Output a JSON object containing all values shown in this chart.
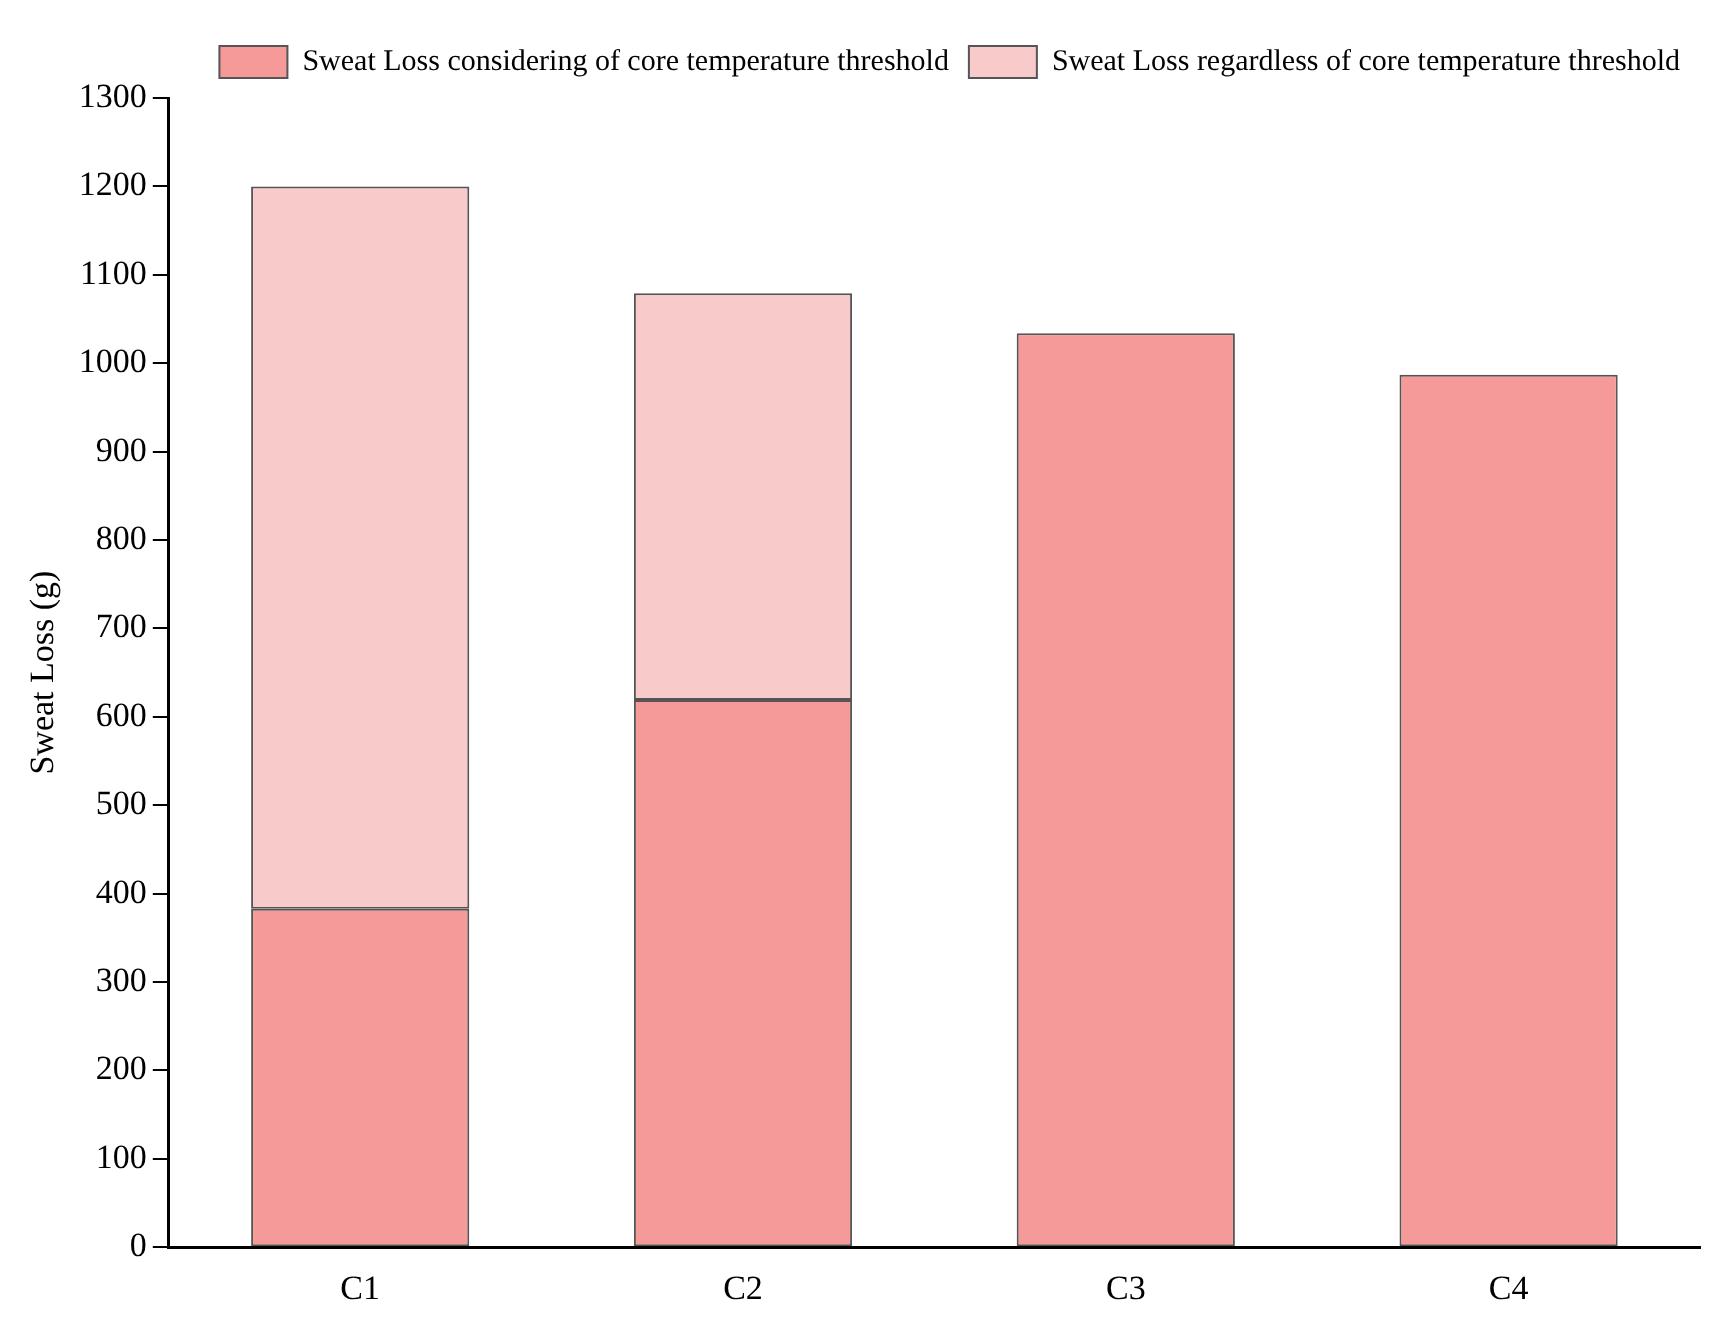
{
  "chart_data": {
    "type": "bar",
    "ylabel": "Sweat Loss (g)",
    "categories": [
      "C1",
      "C2",
      "C3",
      "C4"
    ],
    "stacked": true,
    "series": [
      {
        "name": "Sweat Loss considering of core temperature threshold",
        "color": "#f59a98",
        "values": [
          383,
          619,
          1034,
          987
        ]
      },
      {
        "name": "Sweat Loss regardless of core temperature threshold",
        "color": "#f9caca",
        "values": [
          817,
          460,
          null,
          null
        ]
      }
    ],
    "ylim": [
      0,
      1300
    ],
    "yticks": [
      0,
      100,
      200,
      300,
      400,
      500,
      600,
      700,
      800,
      900,
      1000,
      1100,
      1200,
      1300
    ],
    "grid": false,
    "legend": "top right"
  }
}
